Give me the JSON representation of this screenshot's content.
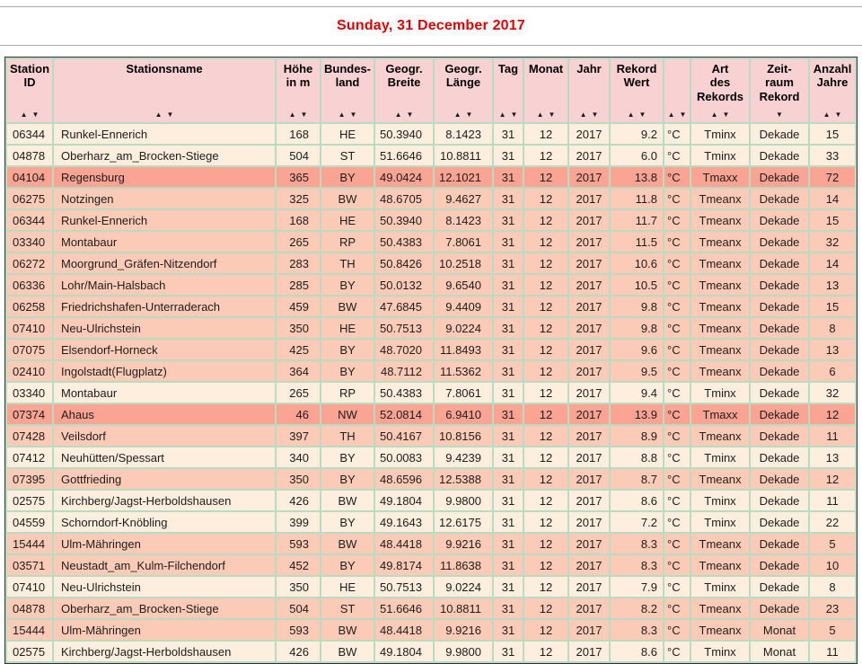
{
  "page": {
    "title": "Sunday, 31 December 2017"
  },
  "colors": {
    "title": "#dd0000",
    "header_bg": "#f8d2d2",
    "grid": "#b7dcc2",
    "outer_border": "#333333",
    "row_tminx": "#fdeedd",
    "row_tmeanx": "#fccbb7",
    "row_tmaxx": "#fca493"
  },
  "sort_icons": {
    "asc": "▲",
    "desc": "▼"
  },
  "row_color_by_art": {
    "Tminx": "row_tminx",
    "Tmeanx": "row_tmeanx",
    "Tmaxx": "row_tmaxx"
  },
  "table": {
    "columns": [
      {
        "key": "id",
        "label": "Station\nID",
        "sort": "both"
      },
      {
        "key": "name",
        "label": "Stationsname",
        "sort": "both"
      },
      {
        "key": "hoehe",
        "label": "Höhe\nin m",
        "sort": "both"
      },
      {
        "key": "land",
        "label": "Bundes-\nland",
        "sort": "both"
      },
      {
        "key": "breite",
        "label": "Geogr.\nBreite",
        "sort": "both"
      },
      {
        "key": "laenge",
        "label": "Geogr.\nLänge",
        "sort": "both"
      },
      {
        "key": "tag",
        "label": "Tag",
        "sort": "both"
      },
      {
        "key": "monat",
        "label": "Monat",
        "sort": "both"
      },
      {
        "key": "jahr",
        "label": "Jahr",
        "sort": "both"
      },
      {
        "key": "wert",
        "label": "Rekord\nWert",
        "sort": "both"
      },
      {
        "key": "unit",
        "label": "",
        "sort": "both"
      },
      {
        "key": "art",
        "label": "Art\ndes\nRekords",
        "sort": "both"
      },
      {
        "key": "zeitraum",
        "label": "Zeit-\nraum\nRekord",
        "sort": "desc"
      },
      {
        "key": "jahre",
        "label": "Anzahl\nJahre",
        "sort": "both"
      }
    ],
    "rows": [
      {
        "id": "06344",
        "name": "Runkel-Ennerich",
        "hoehe": "168",
        "land": "HE",
        "breite": "50.3940",
        "laenge": "8.1423",
        "tag": "31",
        "monat": "12",
        "jahr": "2017",
        "wert": "9.2",
        "unit": "°C",
        "art": "Tminx",
        "zeitraum": "Dekade",
        "jahre": "15"
      },
      {
        "id": "04878",
        "name": "Oberharz_am_Brocken-Stiege",
        "hoehe": "504",
        "land": "ST",
        "breite": "51.6646",
        "laenge": "10.8811",
        "tag": "31",
        "monat": "12",
        "jahr": "2017",
        "wert": "6.0",
        "unit": "°C",
        "art": "Tminx",
        "zeitraum": "Dekade",
        "jahre": "33"
      },
      {
        "id": "04104",
        "name": "Regensburg",
        "hoehe": "365",
        "land": "BY",
        "breite": "49.0424",
        "laenge": "12.1021",
        "tag": "31",
        "monat": "12",
        "jahr": "2017",
        "wert": "13.8",
        "unit": "°C",
        "art": "Tmaxx",
        "zeitraum": "Dekade",
        "jahre": "72"
      },
      {
        "id": "06275",
        "name": "Notzingen",
        "hoehe": "325",
        "land": "BW",
        "breite": "48.6705",
        "laenge": "9.4627",
        "tag": "31",
        "monat": "12",
        "jahr": "2017",
        "wert": "11.8",
        "unit": "°C",
        "art": "Tmeanx",
        "zeitraum": "Dekade",
        "jahre": "14"
      },
      {
        "id": "06344",
        "name": "Runkel-Ennerich",
        "hoehe": "168",
        "land": "HE",
        "breite": "50.3940",
        "laenge": "8.1423",
        "tag": "31",
        "monat": "12",
        "jahr": "2017",
        "wert": "11.7",
        "unit": "°C",
        "art": "Tmeanx",
        "zeitraum": "Dekade",
        "jahre": "15"
      },
      {
        "id": "03340",
        "name": "Montabaur",
        "hoehe": "265",
        "land": "RP",
        "breite": "50.4383",
        "laenge": "7.8061",
        "tag": "31",
        "monat": "12",
        "jahr": "2017",
        "wert": "11.5",
        "unit": "°C",
        "art": "Tmeanx",
        "zeitraum": "Dekade",
        "jahre": "32"
      },
      {
        "id": "06272",
        "name": "Moorgrund_Gräfen-Nitzendorf",
        "hoehe": "283",
        "land": "TH",
        "breite": "50.8426",
        "laenge": "10.2518",
        "tag": "31",
        "monat": "12",
        "jahr": "2017",
        "wert": "10.6",
        "unit": "°C",
        "art": "Tmeanx",
        "zeitraum": "Dekade",
        "jahre": "14"
      },
      {
        "id": "06336",
        "name": "Lohr/Main-Halsbach",
        "hoehe": "285",
        "land": "BY",
        "breite": "50.0132",
        "laenge": "9.6540",
        "tag": "31",
        "monat": "12",
        "jahr": "2017",
        "wert": "10.5",
        "unit": "°C",
        "art": "Tmeanx",
        "zeitraum": "Dekade",
        "jahre": "13"
      },
      {
        "id": "06258",
        "name": "Friedrichshafen-Unterraderach",
        "hoehe": "459",
        "land": "BW",
        "breite": "47.6845",
        "laenge": "9.4409",
        "tag": "31",
        "monat": "12",
        "jahr": "2017",
        "wert": "9.8",
        "unit": "°C",
        "art": "Tmeanx",
        "zeitraum": "Dekade",
        "jahre": "15"
      },
      {
        "id": "07410",
        "name": "Neu-Ulrichstein",
        "hoehe": "350",
        "land": "HE",
        "breite": "50.7513",
        "laenge": "9.0224",
        "tag": "31",
        "monat": "12",
        "jahr": "2017",
        "wert": "9.8",
        "unit": "°C",
        "art": "Tmeanx",
        "zeitraum": "Dekade",
        "jahre": "8"
      },
      {
        "id": "07075",
        "name": "Elsendorf-Horneck",
        "hoehe": "425",
        "land": "BY",
        "breite": "48.7020",
        "laenge": "11.8493",
        "tag": "31",
        "monat": "12",
        "jahr": "2017",
        "wert": "9.6",
        "unit": "°C",
        "art": "Tmeanx",
        "zeitraum": "Dekade",
        "jahre": "13"
      },
      {
        "id": "02410",
        "name": "Ingolstadt(Flugplatz)",
        "hoehe": "364",
        "land": "BY",
        "breite": "48.7112",
        "laenge": "11.5362",
        "tag": "31",
        "monat": "12",
        "jahr": "2017",
        "wert": "9.5",
        "unit": "°C",
        "art": "Tmeanx",
        "zeitraum": "Dekade",
        "jahre": "6"
      },
      {
        "id": "03340",
        "name": "Montabaur",
        "hoehe": "265",
        "land": "RP",
        "breite": "50.4383",
        "laenge": "7.8061",
        "tag": "31",
        "monat": "12",
        "jahr": "2017",
        "wert": "9.4",
        "unit": "°C",
        "art": "Tminx",
        "zeitraum": "Dekade",
        "jahre": "32"
      },
      {
        "id": "07374",
        "name": "Ahaus",
        "hoehe": "46",
        "land": "NW",
        "breite": "52.0814",
        "laenge": "6.9410",
        "tag": "31",
        "monat": "12",
        "jahr": "2017",
        "wert": "13.9",
        "unit": "°C",
        "art": "Tmaxx",
        "zeitraum": "Dekade",
        "jahre": "12"
      },
      {
        "id": "07428",
        "name": "Veilsdorf",
        "hoehe": "397",
        "land": "TH",
        "breite": "50.4167",
        "laenge": "10.8156",
        "tag": "31",
        "monat": "12",
        "jahr": "2017",
        "wert": "8.9",
        "unit": "°C",
        "art": "Tmeanx",
        "zeitraum": "Dekade",
        "jahre": "11"
      },
      {
        "id": "07412",
        "name": "Neuhütten/Spessart",
        "hoehe": "340",
        "land": "BY",
        "breite": "50.0083",
        "laenge": "9.4239",
        "tag": "31",
        "monat": "12",
        "jahr": "2017",
        "wert": "8.8",
        "unit": "°C",
        "art": "Tminx",
        "zeitraum": "Dekade",
        "jahre": "13"
      },
      {
        "id": "07395",
        "name": "Gottfrieding",
        "hoehe": "350",
        "land": "BY",
        "breite": "48.6596",
        "laenge": "12.5388",
        "tag": "31",
        "monat": "12",
        "jahr": "2017",
        "wert": "8.7",
        "unit": "°C",
        "art": "Tmeanx",
        "zeitraum": "Dekade",
        "jahre": "12"
      },
      {
        "id": "02575",
        "name": "Kirchberg/Jagst-Herboldshausen",
        "hoehe": "426",
        "land": "BW",
        "breite": "49.1804",
        "laenge": "9.9800",
        "tag": "31",
        "monat": "12",
        "jahr": "2017",
        "wert": "8.6",
        "unit": "°C",
        "art": "Tminx",
        "zeitraum": "Dekade",
        "jahre": "11"
      },
      {
        "id": "04559",
        "name": "Schorndorf-Knöbling",
        "hoehe": "399",
        "land": "BY",
        "breite": "49.1643",
        "laenge": "12.6175",
        "tag": "31",
        "monat": "12",
        "jahr": "2017",
        "wert": "7.2",
        "unit": "°C",
        "art": "Tminx",
        "zeitraum": "Dekade",
        "jahre": "22"
      },
      {
        "id": "15444",
        "name": "Ulm-Mähringen",
        "hoehe": "593",
        "land": "BW",
        "breite": "48.4418",
        "laenge": "9.9216",
        "tag": "31",
        "monat": "12",
        "jahr": "2017",
        "wert": "8.3",
        "unit": "°C",
        "art": "Tmeanx",
        "zeitraum": "Dekade",
        "jahre": "5"
      },
      {
        "id": "03571",
        "name": "Neustadt_am_Kulm-Filchendorf",
        "hoehe": "452",
        "land": "BY",
        "breite": "49.8174",
        "laenge": "11.8638",
        "tag": "31",
        "monat": "12",
        "jahr": "2017",
        "wert": "8.3",
        "unit": "°C",
        "art": "Tmeanx",
        "zeitraum": "Dekade",
        "jahre": "10"
      },
      {
        "id": "07410",
        "name": "Neu-Ulrichstein",
        "hoehe": "350",
        "land": "HE",
        "breite": "50.7513",
        "laenge": "9.0224",
        "tag": "31",
        "monat": "12",
        "jahr": "2017",
        "wert": "7.9",
        "unit": "°C",
        "art": "Tminx",
        "zeitraum": "Dekade",
        "jahre": "8"
      },
      {
        "id": "04878",
        "name": "Oberharz_am_Brocken-Stiege",
        "hoehe": "504",
        "land": "ST",
        "breite": "51.6646",
        "laenge": "10.8811",
        "tag": "31",
        "monat": "12",
        "jahr": "2017",
        "wert": "8.2",
        "unit": "°C",
        "art": "Tmeanx",
        "zeitraum": "Dekade",
        "jahre": "23"
      },
      {
        "id": "15444",
        "name": "Ulm-Mähringen",
        "hoehe": "593",
        "land": "BW",
        "breite": "48.4418",
        "laenge": "9.9216",
        "tag": "31",
        "monat": "12",
        "jahr": "2017",
        "wert": "8.3",
        "unit": "°C",
        "art": "Tmeanx",
        "zeitraum": "Monat",
        "jahre": "5"
      },
      {
        "id": "02575",
        "name": "Kirchberg/Jagst-Herboldshausen",
        "hoehe": "426",
        "land": "BW",
        "breite": "49.1804",
        "laenge": "9.9800",
        "tag": "31",
        "monat": "12",
        "jahr": "2017",
        "wert": "8.6",
        "unit": "°C",
        "art": "Tminx",
        "zeitraum": "Monat",
        "jahre": "11"
      }
    ]
  }
}
